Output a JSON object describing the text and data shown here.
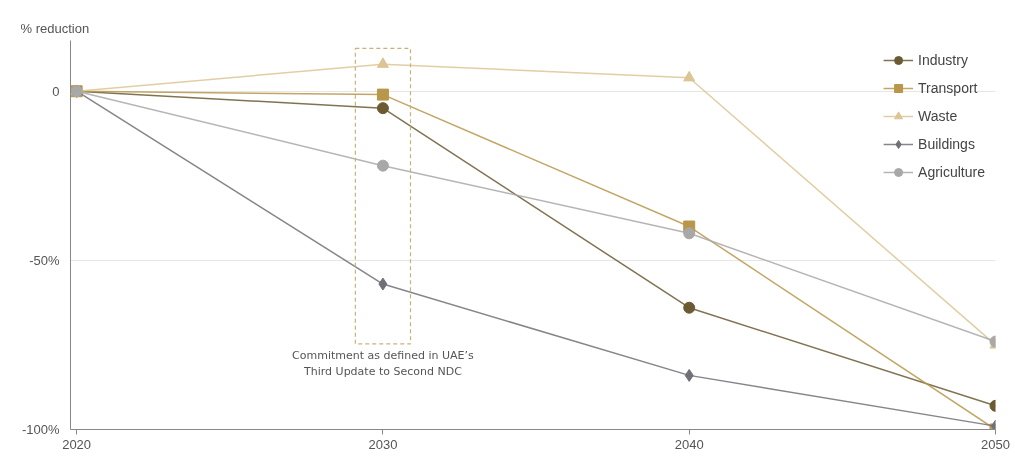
{
  "chart_data": {
    "type": "line",
    "ylabel": "% reduction",
    "x": [
      2020,
      2030,
      2040,
      2050
    ],
    "series": [
      {
        "name": "Industry",
        "color": "#6b5a32",
        "marker": "circle",
        "values": [
          0,
          -5,
          -64,
          -93
        ]
      },
      {
        "name": "Transport",
        "color": "#b9974a",
        "marker": "square",
        "values": [
          0,
          -1,
          -40,
          -100
        ]
      },
      {
        "name": "Waste",
        "color": "#dcc594",
        "marker": "triangle",
        "values": [
          0,
          8,
          4,
          -75
        ]
      },
      {
        "name": "Buildings",
        "color": "#707078",
        "marker": "diamond",
        "values": [
          0,
          -57,
          -84,
          -99
        ]
      },
      {
        "name": "Agriculture",
        "color": "#a8a8a8",
        "marker": "circle",
        "values": [
          0,
          -22,
          -42,
          -74
        ]
      }
    ],
    "xlim": [
      2019.8,
      2050
    ],
    "xticks": [
      2020,
      2030,
      2040,
      2050
    ],
    "ylim": [
      -100,
      15
    ],
    "yticks": [
      {
        "value": 0,
        "label": "0"
      },
      {
        "value": -50,
        "label": "-50%"
      },
      {
        "value": -100,
        "label": "-100%"
      }
    ],
    "grid": "y",
    "legend": "top right",
    "annotations": [
      "Commitment as defined in UAE’s\nThird Update to Second NDC"
    ]
  }
}
